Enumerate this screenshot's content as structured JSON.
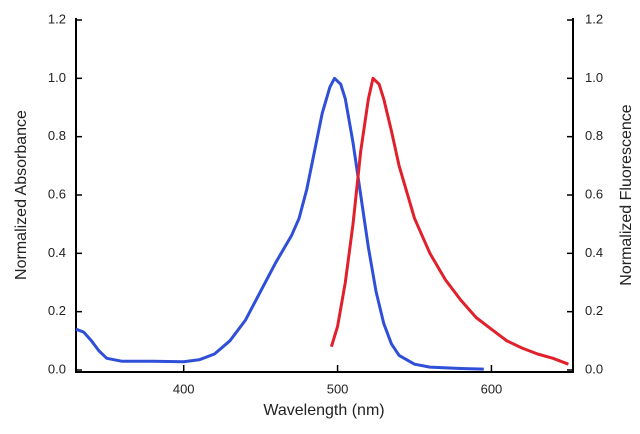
{
  "chart_data": {
    "type": "line",
    "xlabel": "Wavelength (nm)",
    "ylabel": "Normalized Absorbance",
    "y2label": "Normalized Fluorescence",
    "xlim": [
      330,
      653
    ],
    "xticks": [
      400,
      500,
      600
    ],
    "ylim": [
      0,
      1.2
    ],
    "yticks": [
      {
        "value": 0,
        "label": "0.0"
      },
      0.2,
      0.4,
      0.6,
      0.8,
      {
        "value": 1,
        "label": "1.0"
      },
      1.2
    ],
    "y2lim": [
      0,
      1.2
    ],
    "y2ticks": [
      {
        "value": 0,
        "label": "0.0"
      },
      0.2,
      0.4,
      0.6,
      0.8,
      {
        "value": 1,
        "label": "1.0"
      },
      1.2
    ],
    "series": [
      {
        "color": "#2f4fd8",
        "x": [
          330,
          335,
          340,
          345,
          350,
          360,
          380,
          400,
          410,
          420,
          430,
          440,
          450,
          460,
          470,
          475,
          480,
          485,
          490,
          495,
          498,
          502,
          505,
          510,
          515,
          520,
          525,
          530,
          535,
          540,
          550,
          560,
          580,
          595
        ],
        "values": [
          0.14,
          0.13,
          0.1,
          0.065,
          0.04,
          0.03,
          0.03,
          0.028,
          0.035,
          0.055,
          0.1,
          0.17,
          0.27,
          0.37,
          0.46,
          0.52,
          0.62,
          0.75,
          0.88,
          0.97,
          1.0,
          0.98,
          0.93,
          0.78,
          0.6,
          0.42,
          0.27,
          0.16,
          0.09,
          0.05,
          0.02,
          0.01,
          0.005,
          0.003
        ]
      },
      {
        "color": "#e0202a",
        "axis": "y2",
        "x": [
          496,
          500,
          505,
          510,
          515,
          520,
          523,
          527,
          530,
          535,
          540,
          550,
          560,
          570,
          580,
          590,
          600,
          610,
          620,
          630,
          640,
          650
        ],
        "values": [
          0.08,
          0.15,
          0.3,
          0.5,
          0.75,
          0.93,
          1.0,
          0.98,
          0.93,
          0.82,
          0.7,
          0.52,
          0.4,
          0.31,
          0.24,
          0.18,
          0.14,
          0.1,
          0.075,
          0.055,
          0.04,
          0.02
        ]
      }
    ]
  }
}
